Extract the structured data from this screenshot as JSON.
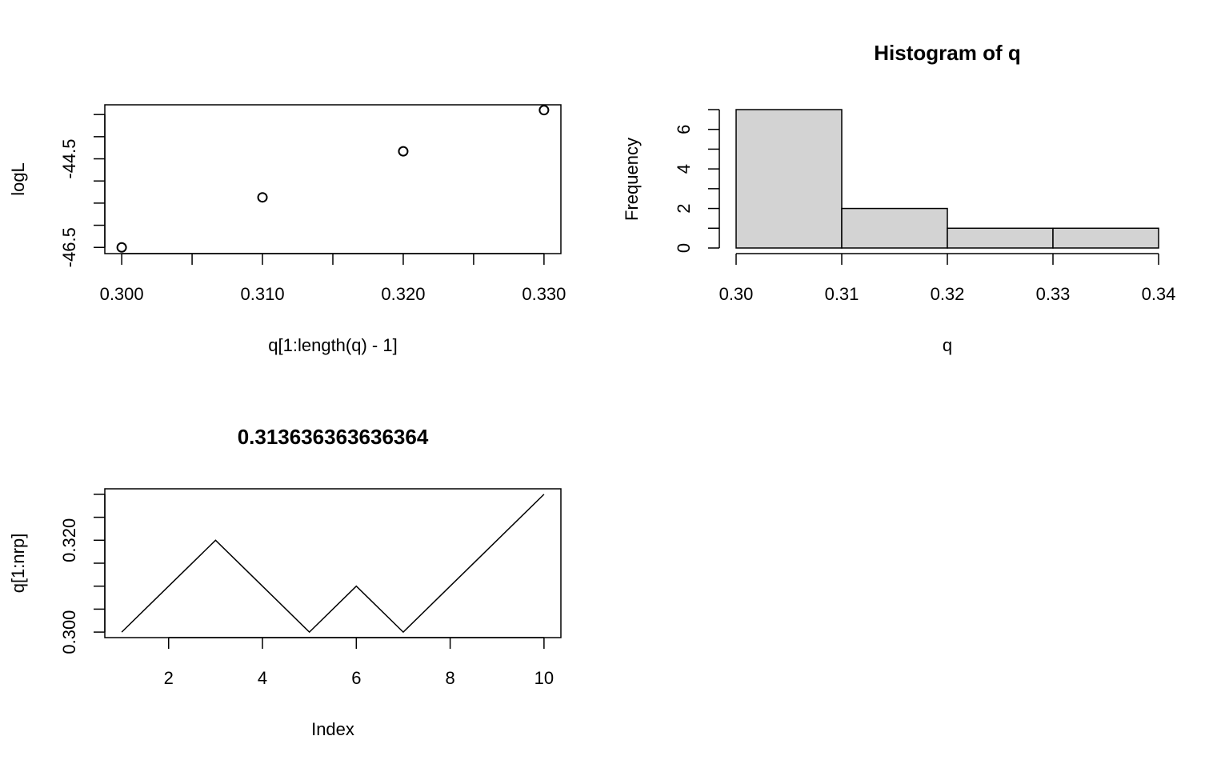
{
  "chart_data": [
    {
      "type": "scatter",
      "title": "",
      "xlabel": "q[1:length(q) - 1]",
      "ylabel": "logL",
      "xlim": [
        0.2988,
        0.3312
      ],
      "ylim": [
        -46.64,
        -43.28
      ],
      "x_ticks": [
        0.3,
        0.305,
        0.31,
        0.315,
        0.32,
        0.325,
        0.33
      ],
      "x_tick_labels": [
        {
          "value": 0.3,
          "label": "0.300"
        },
        {
          "value": 0.31,
          "label": "0.310"
        },
        {
          "value": 0.32,
          "label": "0.320"
        },
        {
          "value": 0.33,
          "label": "0.330"
        }
      ],
      "y_ticks": [
        -46.5,
        -46.0,
        -45.5,
        -45.0,
        -44.5,
        -44.0,
        -43.5
      ],
      "y_tick_labels": [
        {
          "value": -46.5,
          "label": "-46.5"
        },
        {
          "value": -44.5,
          "label": "-44.5"
        }
      ],
      "points": [
        {
          "x": 0.3,
          "y": -46.5
        },
        {
          "x": 0.31,
          "y": -45.37
        },
        {
          "x": 0.32,
          "y": -44.33
        },
        {
          "x": 0.33,
          "y": -43.4
        }
      ]
    },
    {
      "type": "bar",
      "title": "Histogram of q",
      "xlabel": "q",
      "ylabel": "Frequency",
      "bins": [
        {
          "from": 0.3,
          "to": 0.31,
          "count": 7
        },
        {
          "from": 0.31,
          "to": 0.32,
          "count": 2
        },
        {
          "from": 0.32,
          "to": 0.33,
          "count": 1
        },
        {
          "from": 0.33,
          "to": 0.34,
          "count": 1
        }
      ],
      "xlim": [
        0.3,
        0.34
      ],
      "ylim": [
        0,
        7
      ],
      "x_tick_labels": [
        {
          "value": 0.3,
          "label": "0.30"
        },
        {
          "value": 0.31,
          "label": "0.31"
        },
        {
          "value": 0.32,
          "label": "0.32"
        },
        {
          "value": 0.33,
          "label": "0.33"
        },
        {
          "value": 0.34,
          "label": "0.34"
        }
      ],
      "y_ticks": [
        0,
        1,
        2,
        3,
        4,
        5,
        6,
        7
      ],
      "y_tick_labels": [
        {
          "value": 0,
          "label": "0"
        },
        {
          "value": 2,
          "label": "2"
        },
        {
          "value": 4,
          "label": "4"
        },
        {
          "value": 6,
          "label": "6"
        }
      ],
      "bar_color": "#d3d3d3"
    },
    {
      "type": "line",
      "title": "0.313636363636364",
      "xlabel": "Index",
      "ylabel": "q[1:nrp]",
      "xlim": [
        0.64,
        10.36
      ],
      "ylim": [
        0.2988,
        0.3312
      ],
      "x_ticks": [
        2,
        4,
        6,
        8,
        10
      ],
      "x_tick_labels": [
        {
          "value": 2,
          "label": "2"
        },
        {
          "value": 4,
          "label": "4"
        },
        {
          "value": 6,
          "label": "6"
        },
        {
          "value": 8,
          "label": "8"
        },
        {
          "value": 10,
          "label": "10"
        }
      ],
      "y_ticks": [
        0.3,
        0.305,
        0.31,
        0.315,
        0.32,
        0.325,
        0.33
      ],
      "y_tick_labels": [
        {
          "value": 0.3,
          "label": "0.300"
        },
        {
          "value": 0.32,
          "label": "0.320"
        }
      ],
      "x": [
        1,
        2,
        3,
        4,
        5,
        6,
        7,
        8,
        9,
        10
      ],
      "y": [
        0.3,
        0.31,
        0.32,
        0.31,
        0.3,
        0.31,
        0.3,
        0.31,
        0.32,
        0.33
      ]
    }
  ]
}
